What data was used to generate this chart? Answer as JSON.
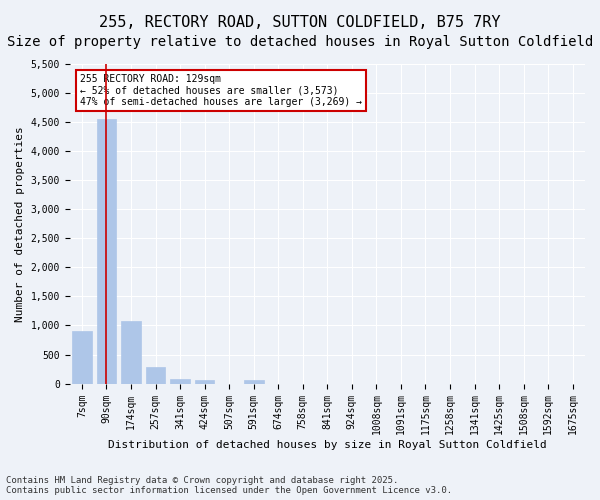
{
  "title": "255, RECTORY ROAD, SUTTON COLDFIELD, B75 7RY",
  "subtitle": "Size of property relative to detached houses in Royal Sutton Coldfield",
  "xlabel": "Distribution of detached houses by size in Royal Sutton Coldfield",
  "ylabel": "Number of detached properties",
  "footnote": "Contains HM Land Registry data © Crown copyright and database right 2025.\nContains public sector information licensed under the Open Government Licence v3.0.",
  "bin_labels": [
    "7sqm",
    "90sqm",
    "174sqm",
    "257sqm",
    "341sqm",
    "424sqm",
    "507sqm",
    "591sqm",
    "674sqm",
    "758sqm",
    "841sqm",
    "924sqm",
    "1008sqm",
    "1091sqm",
    "1175sqm",
    "1258sqm",
    "1341sqm",
    "1425sqm",
    "1508sqm",
    "1592sqm",
    "1675sqm"
  ],
  "bar_values": [
    900,
    4550,
    1080,
    290,
    80,
    70,
    0,
    60,
    0,
    0,
    0,
    0,
    0,
    0,
    0,
    0,
    0,
    0,
    0,
    0,
    0
  ],
  "bar_color": "#aec6e8",
  "bar_edge_color": "#aec6e8",
  "vline_x": 1.0,
  "vline_color": "#cc0000",
  "annotation_text": "255 RECTORY ROAD: 129sqm\n← 52% of detached houses are smaller (3,573)\n47% of semi-detached houses are larger (3,269) →",
  "annotation_box_color": "#ffffff",
  "annotation_box_edge": "#cc0000",
  "ylim": [
    0,
    5500
  ],
  "yticks": [
    0,
    500,
    1000,
    1500,
    2000,
    2500,
    3000,
    3500,
    4000,
    4500,
    5000,
    5500
  ],
  "bg_color": "#eef2f8",
  "plot_bg_color": "#eef2f8",
  "grid_color": "#ffffff",
  "title_fontsize": 11,
  "subtitle_fontsize": 10,
  "label_fontsize": 8,
  "tick_fontsize": 7,
  "footnote_fontsize": 6.5
}
